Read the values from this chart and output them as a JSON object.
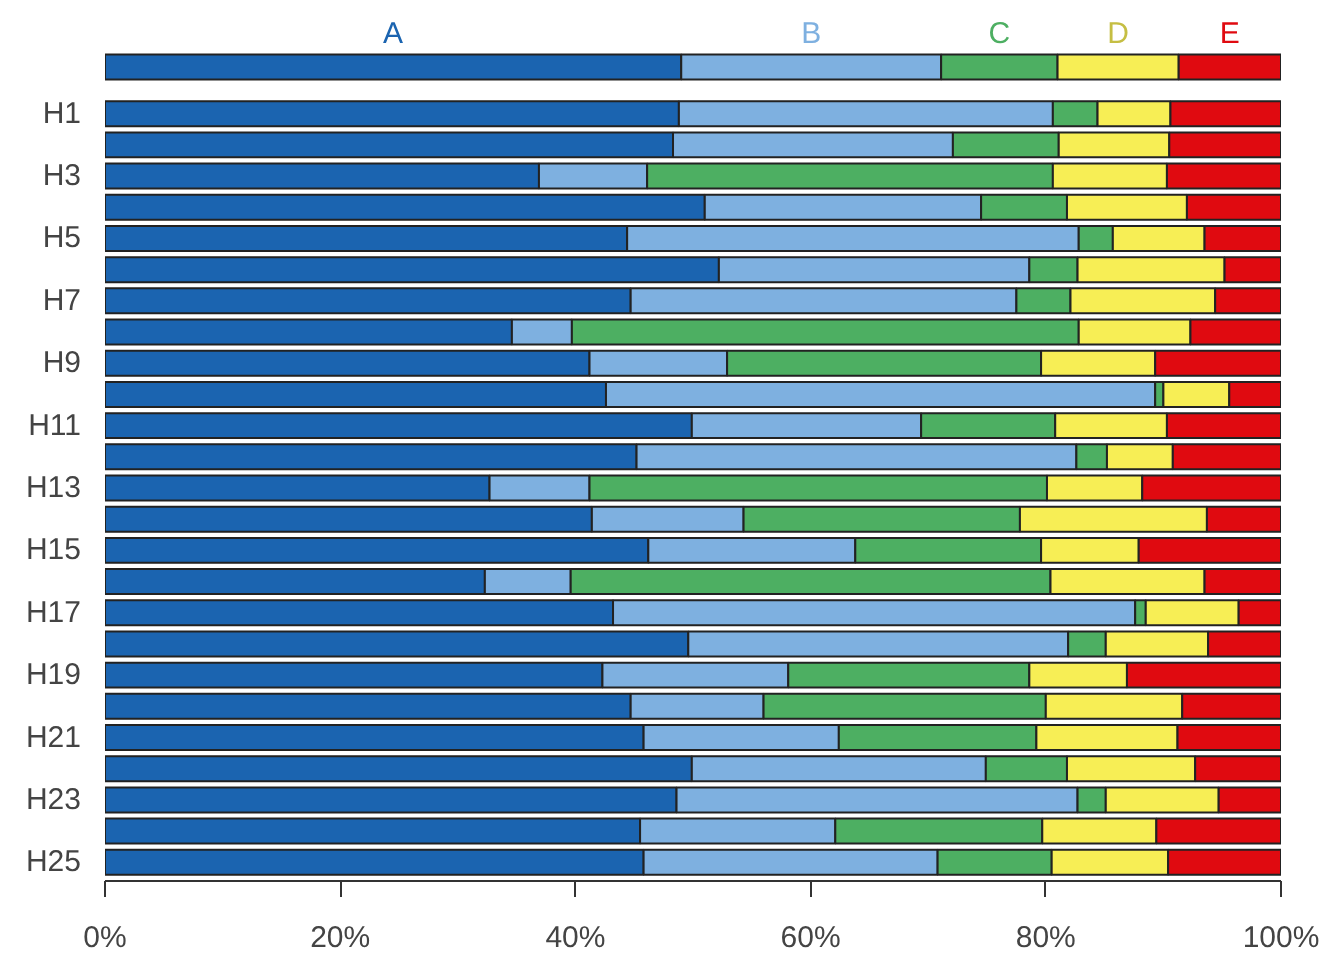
{
  "chart_data": {
    "type": "bar",
    "orientation": "horizontal",
    "stacked": true,
    "categories": [
      null,
      "H1",
      null,
      "H3",
      null,
      "H5",
      null,
      "H7",
      null,
      "H9",
      null,
      "H11",
      null,
      "H13",
      null,
      "H15",
      null,
      "H17",
      null,
      "H19",
      null,
      "H21",
      null,
      "H23",
      null,
      "H25"
    ],
    "series": [
      {
        "name": "A",
        "color": "#1b64b0",
        "values": [
          49.0,
          48.8,
          48.3,
          36.9,
          51.0,
          44.4,
          52.2,
          44.7,
          34.6,
          41.2,
          42.6,
          49.9,
          45.2,
          32.7,
          41.4,
          46.2,
          32.3,
          43.2,
          49.6,
          42.3,
          44.7,
          45.8,
          49.9,
          48.6,
          45.5,
          45.8
        ]
      },
      {
        "name": "B",
        "color": "#7eb0e0",
        "values": [
          22.1,
          31.8,
          23.8,
          9.2,
          23.5,
          38.4,
          26.4,
          32.8,
          5.1,
          11.7,
          46.7,
          19.5,
          37.4,
          8.5,
          12.9,
          17.6,
          7.3,
          44.4,
          32.3,
          15.8,
          11.3,
          16.6,
          25.0,
          34.1,
          16.6,
          25.0
        ]
      },
      {
        "name": "C",
        "color": "#4daf62",
        "values": [
          9.9,
          3.8,
          9.0,
          34.5,
          7.3,
          2.9,
          4.1,
          4.6,
          43.1,
          26.7,
          0.7,
          11.4,
          2.6,
          38.9,
          23.5,
          15.8,
          40.8,
          0.9,
          3.2,
          20.5,
          24.0,
          16.8,
          6.9,
          2.4,
          17.6,
          9.7
        ]
      },
      {
        "name": "D",
        "color": "#f7ee55",
        "values": [
          10.3,
          6.2,
          9.4,
          9.7,
          10.2,
          7.8,
          12.5,
          12.3,
          9.5,
          9.7,
          5.6,
          9.5,
          5.6,
          8.1,
          15.9,
          8.3,
          13.1,
          7.9,
          8.7,
          8.3,
          11.6,
          12.0,
          10.9,
          9.6,
          9.7,
          9.9
        ]
      },
      {
        "name": "E",
        "color": "#e00a10",
        "values": [
          8.7,
          9.4,
          9.5,
          9.7,
          8.0,
          6.5,
          4.8,
          5.6,
          7.7,
          10.7,
          4.4,
          9.7,
          9.2,
          11.8,
          6.3,
          12.1,
          6.5,
          3.6,
          6.2,
          13.1,
          8.4,
          8.8,
          7.3,
          5.3,
          10.6,
          9.6
        ]
      }
    ],
    "xlim": [
      0,
      100
    ],
    "xticks": [
      {
        "value": 0,
        "label": "0%"
      },
      {
        "value": 20,
        "label": "20%"
      },
      {
        "value": 40,
        "label": "40%"
      },
      {
        "value": 60,
        "label": "60%"
      },
      {
        "value": 80,
        "label": "80%"
      },
      {
        "value": 100,
        "label": "100%"
      }
    ],
    "grid": false
  }
}
